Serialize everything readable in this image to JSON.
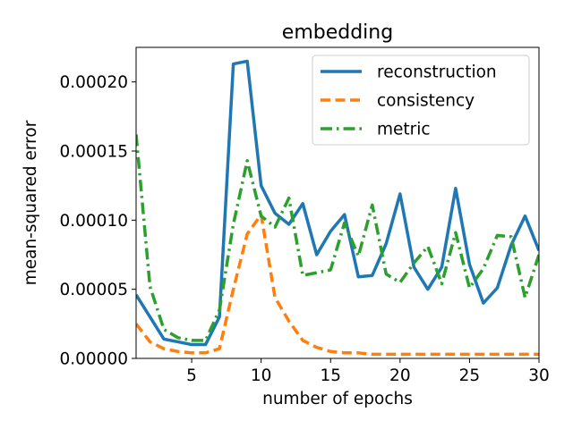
{
  "chart_data": {
    "type": "line",
    "title": "embedding",
    "xlabel": "number of epochs",
    "ylabel": "mean-squared error",
    "xlim": [
      1,
      30
    ],
    "ylim": [
      0,
      0.000225
    ],
    "xticks": [
      5,
      10,
      15,
      20,
      25,
      30
    ],
    "xtick_labels": [
      "5",
      "10",
      "15",
      "20",
      "25",
      "30"
    ],
    "yticks": [
      0,
      5e-05,
      0.0001,
      0.00015,
      0.0002
    ],
    "ytick_labels": [
      "0.00000",
      "0.00005",
      "0.00010",
      "0.00015",
      "0.00020"
    ],
    "grid": false,
    "legend_position": "top-right",
    "x": [
      1,
      2,
      3,
      4,
      5,
      6,
      7,
      8,
      9,
      10,
      11,
      12,
      13,
      14,
      15,
      16,
      17,
      18,
      19,
      20,
      21,
      22,
      23,
      24,
      25,
      26,
      27,
      28,
      29,
      30
    ],
    "series": [
      {
        "name": "reconstruction",
        "color": "#1f77b4",
        "style": "solid",
        "values": [
          4.6e-05,
          3e-05,
          1.4e-05,
          1.2e-05,
          1e-05,
          1e-05,
          3e-05,
          0.000213,
          0.000215,
          0.000125,
          0.000105,
          9.7e-05,
          0.000112,
          7.5e-05,
          9.2e-05,
          0.000104,
          5.9e-05,
          6e-05,
          8.3e-05,
          0.000119,
          6.6e-05,
          5e-05,
          6.6e-05,
          0.000123,
          6.8e-05,
          4e-05,
          5.1e-05,
          8.2e-05,
          0.000103,
          7.8e-05
        ]
      },
      {
        "name": "consistency",
        "color": "#ff7f0e",
        "style": "dashed",
        "values": [
          2.5e-05,
          1.2e-05,
          7e-06,
          5e-06,
          4e-06,
          4e-06,
          7e-06,
          5e-05,
          9e-05,
          0.000104,
          4.4e-05,
          2.7e-05,
          1.3e-05,
          8e-06,
          5e-06,
          4e-06,
          4e-06,
          3e-06,
          3e-06,
          3e-06,
          3e-06,
          3e-06,
          3e-06,
          3e-06,
          3e-06,
          3e-06,
          3e-06,
          3e-06,
          3e-06,
          3e-06
        ]
      },
      {
        "name": "metric",
        "color": "#2ca02c",
        "style": "dashdot",
        "values": [
          0.000162,
          5.2e-05,
          2.1e-05,
          1.5e-05,
          1.3e-05,
          1.3e-05,
          3.5e-05,
          9.7e-05,
          0.000143,
          0.000103,
          9.5e-05,
          0.000116,
          6e-05,
          6.2e-05,
          6.4e-05,
          9.8e-05,
          7.4e-05,
          0.000111,
          6.1e-05,
          5.5e-05,
          6.9e-05,
          8.1e-05,
          5.4e-05,
          9.1e-05,
          5.1e-05,
          6.5e-05,
          8.9e-05,
          8.8e-05,
          4.4e-05,
          7.5e-05
        ]
      }
    ]
  }
}
